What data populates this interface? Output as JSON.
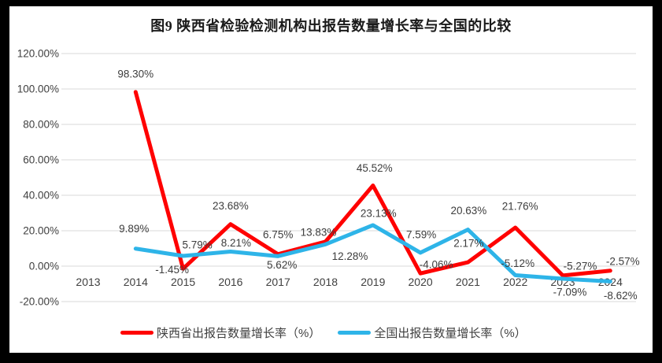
{
  "colors": {
    "frame_bg": "#000000",
    "card_bg": "#ffffff",
    "grid": "#d9d9d9",
    "axis_text": "#404040",
    "label_text": "#3d3d3d",
    "title_text": "#1a1a1a",
    "red": "#ff0000",
    "blue": "#2eb4e8"
  },
  "chart_data": {
    "type": "line",
    "title": "图9 陕西省检验检测机构出报告数量增长率与全国的比较",
    "categories": [
      "2013",
      "2014",
      "2015",
      "2016",
      "2017",
      "2018",
      "2019",
      "2020",
      "2021",
      "2022",
      "2023",
      "2024"
    ],
    "xlabel": "",
    "ylabel": "",
    "ylim": [
      -20,
      120
    ],
    "ytick_step": 20,
    "yticks": [
      "120.00%",
      "100.00%",
      "80.00%",
      "60.00%",
      "40.00%",
      "20.00%",
      "0.00%",
      "-20.00%"
    ],
    "grid": true,
    "legend_position": "bottom",
    "series": [
      {
        "name": "陕西省出报告数量增长率（%）",
        "color": "#ff0000",
        "values": [
          null,
          98.3,
          -1.45,
          23.68,
          6.75,
          13.83,
          45.52,
          -4.06,
          2.17,
          21.76,
          -5.27,
          -2.57
        ],
        "labels": [
          "",
          "98.30%",
          "-1.45%",
          "23.68%",
          "6.75%",
          "13.83%",
          "45.52%",
          "-4.06%",
          "2.17%",
          "21.76%",
          "-5.27%",
          "-2.57%"
        ],
        "label_offsets": [
          [
            0,
            0
          ],
          [
            0,
            -23
          ],
          [
            -14,
            1
          ],
          [
            0,
            -23
          ],
          [
            0,
            -25
          ],
          [
            -9,
            -12
          ],
          [
            2,
            -22
          ],
          [
            20,
            -11
          ],
          [
            1,
            -24
          ],
          [
            6,
            -27
          ],
          [
            22,
            -12
          ],
          [
            16,
            -12
          ]
        ]
      },
      {
        "name": "全国出报告数量增长率（%）",
        "color": "#2eb4e8",
        "values": [
          null,
          9.89,
          5.79,
          8.21,
          5.62,
          12.28,
          23.13,
          7.59,
          20.63,
          -5.12,
          -7.09,
          -8.62
        ],
        "labels": [
          "",
          "9.89%",
          "5.79%",
          "8.21%",
          "5.62%",
          "12.28%",
          "23.13%",
          "7.59%",
          "20.63%",
          "-5.12%",
          "-7.09%",
          "-8.62%"
        ],
        "label_offsets": [
          [
            0,
            0
          ],
          [
            -2,
            -25
          ],
          [
            18,
            -14
          ],
          [
            7,
            -11
          ],
          [
            5,
            11
          ],
          [
            31,
            15
          ],
          [
            7,
            -15
          ],
          [
            1,
            -23
          ],
          [
            1,
            -24
          ],
          [
            3,
            -15
          ],
          [
            9,
            17
          ],
          [
            13,
            18
          ]
        ]
      }
    ]
  }
}
